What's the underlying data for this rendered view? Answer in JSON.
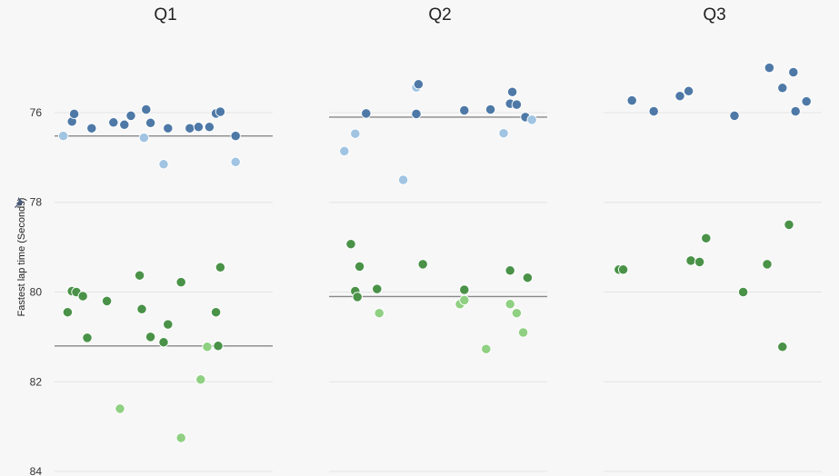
{
  "chart_data": {
    "type": "scatter",
    "ylabel": "Fastest lap time (Seconds)",
    "ylim": [
      74.3,
      84.1
    ],
    "y_ticks": [
      76,
      78,
      80,
      82,
      84
    ],
    "y_reversed": true,
    "grid": true,
    "pin_icon": "pin-icon",
    "colors": {
      "blue_dark": "#4e79a7",
      "blue_light": "#a0c4e2",
      "green_dark": "#4a9248",
      "green_light": "#8fd082",
      "ref_line": "#888888",
      "grid": "#e4e4e4"
    },
    "panels": [
      {
        "title": "Q1",
        "ref_lines": [
          76.52,
          81.2
        ],
        "points": [
          {
            "jitter": 0.04,
            "y": 76.52,
            "color": "blue_light"
          },
          {
            "jitter": 0.08,
            "y": 76.2,
            "color": "blue_dark"
          },
          {
            "jitter": 0.09,
            "y": 76.03,
            "color": "blue_dark"
          },
          {
            "jitter": 0.17,
            "y": 76.35,
            "color": "blue_dark"
          },
          {
            "jitter": 0.27,
            "y": 76.22,
            "color": "blue_dark"
          },
          {
            "jitter": 0.32,
            "y": 76.27,
            "color": "blue_dark"
          },
          {
            "jitter": 0.35,
            "y": 76.07,
            "color": "blue_dark"
          },
          {
            "jitter": 0.41,
            "y": 76.56,
            "color": "blue_light"
          },
          {
            "jitter": 0.42,
            "y": 75.93,
            "color": "blue_dark"
          },
          {
            "jitter": 0.44,
            "y": 76.23,
            "color": "blue_dark"
          },
          {
            "jitter": 0.5,
            "y": 77.15,
            "color": "blue_light"
          },
          {
            "jitter": 0.52,
            "y": 76.35,
            "color": "blue_dark"
          },
          {
            "jitter": 0.62,
            "y": 76.35,
            "color": "blue_dark"
          },
          {
            "jitter": 0.66,
            "y": 76.32,
            "color": "blue_dark"
          },
          {
            "jitter": 0.71,
            "y": 76.32,
            "color": "blue_dark"
          },
          {
            "jitter": 0.74,
            "y": 76.02,
            "color": "blue_dark"
          },
          {
            "jitter": 0.76,
            "y": 75.98,
            "color": "blue_dark"
          },
          {
            "jitter": 0.83,
            "y": 76.52,
            "color": "blue_dark"
          },
          {
            "jitter": 0.83,
            "y": 77.1,
            "color": "blue_light"
          },
          {
            "jitter": 0.06,
            "y": 80.45,
            "color": "green_dark"
          },
          {
            "jitter": 0.08,
            "y": 79.98,
            "color": "green_dark"
          },
          {
            "jitter": 0.1,
            "y": 80.0,
            "color": "green_dark"
          },
          {
            "jitter": 0.13,
            "y": 80.09,
            "color": "green_dark"
          },
          {
            "jitter": 0.15,
            "y": 81.02,
            "color": "green_dark"
          },
          {
            "jitter": 0.24,
            "y": 80.2,
            "color": "green_dark"
          },
          {
            "jitter": 0.3,
            "y": 82.6,
            "color": "green_light"
          },
          {
            "jitter": 0.39,
            "y": 79.63,
            "color": "green_dark"
          },
          {
            "jitter": 0.4,
            "y": 80.38,
            "color": "green_dark"
          },
          {
            "jitter": 0.44,
            "y": 81.0,
            "color": "green_dark"
          },
          {
            "jitter": 0.5,
            "y": 81.12,
            "color": "green_dark"
          },
          {
            "jitter": 0.52,
            "y": 80.72,
            "color": "green_dark"
          },
          {
            "jitter": 0.58,
            "y": 83.25,
            "color": "green_light"
          },
          {
            "jitter": 0.58,
            "y": 79.78,
            "color": "green_dark"
          },
          {
            "jitter": 0.67,
            "y": 81.95,
            "color": "green_light"
          },
          {
            "jitter": 0.7,
            "y": 81.22,
            "color": "green_light"
          },
          {
            "jitter": 0.74,
            "y": 80.45,
            "color": "green_dark"
          },
          {
            "jitter": 0.75,
            "y": 81.2,
            "color": "green_dark"
          },
          {
            "jitter": 0.76,
            "y": 79.45,
            "color": "green_dark"
          }
        ]
      },
      {
        "title": "Q2",
        "ref_lines": [
          76.1,
          80.1
        ],
        "points": [
          {
            "jitter": 0.07,
            "y": 76.86,
            "color": "blue_light"
          },
          {
            "jitter": 0.12,
            "y": 76.47,
            "color": "blue_light"
          },
          {
            "jitter": 0.17,
            "y": 76.02,
            "color": "blue_dark"
          },
          {
            "jitter": 0.34,
            "y": 77.5,
            "color": "blue_light"
          },
          {
            "jitter": 0.4,
            "y": 75.44,
            "color": "blue_light"
          },
          {
            "jitter": 0.41,
            "y": 75.37,
            "color": "blue_dark"
          },
          {
            "jitter": 0.4,
            "y": 76.03,
            "color": "blue_dark"
          },
          {
            "jitter": 0.62,
            "y": 75.95,
            "color": "blue_dark"
          },
          {
            "jitter": 0.74,
            "y": 75.93,
            "color": "blue_dark"
          },
          {
            "jitter": 0.8,
            "y": 76.46,
            "color": "blue_light"
          },
          {
            "jitter": 0.83,
            "y": 75.8,
            "color": "blue_dark"
          },
          {
            "jitter": 0.84,
            "y": 75.54,
            "color": "blue_dark"
          },
          {
            "jitter": 0.86,
            "y": 75.82,
            "color": "blue_dark"
          },
          {
            "jitter": 0.9,
            "y": 76.1,
            "color": "blue_dark"
          },
          {
            "jitter": 0.93,
            "y": 76.16,
            "color": "blue_light"
          },
          {
            "jitter": 0.1,
            "y": 78.93,
            "color": "green_dark"
          },
          {
            "jitter": 0.12,
            "y": 79.98,
            "color": "green_dark"
          },
          {
            "jitter": 0.13,
            "y": 80.11,
            "color": "green_dark"
          },
          {
            "jitter": 0.14,
            "y": 79.43,
            "color": "green_dark"
          },
          {
            "jitter": 0.22,
            "y": 79.93,
            "color": "green_dark"
          },
          {
            "jitter": 0.23,
            "y": 80.47,
            "color": "green_light"
          },
          {
            "jitter": 0.43,
            "y": 79.38,
            "color": "green_dark"
          },
          {
            "jitter": 0.6,
            "y": 80.27,
            "color": "green_light"
          },
          {
            "jitter": 0.62,
            "y": 80.18,
            "color": "green_light"
          },
          {
            "jitter": 0.62,
            "y": 79.95,
            "color": "green_dark"
          },
          {
            "jitter": 0.72,
            "y": 81.27,
            "color": "green_light"
          },
          {
            "jitter": 0.83,
            "y": 79.52,
            "color": "green_dark"
          },
          {
            "jitter": 0.83,
            "y": 80.27,
            "color": "green_light"
          },
          {
            "jitter": 0.86,
            "y": 80.47,
            "color": "green_light"
          },
          {
            "jitter": 0.89,
            "y": 80.9,
            "color": "green_light"
          },
          {
            "jitter": 0.91,
            "y": 79.68,
            "color": "green_dark"
          }
        ]
      },
      {
        "title": "Q3",
        "ref_lines": [],
        "points": [
          {
            "jitter": 0.13,
            "y": 75.73,
            "color": "blue_dark"
          },
          {
            "jitter": 0.23,
            "y": 75.97,
            "color": "blue_dark"
          },
          {
            "jitter": 0.35,
            "y": 75.63,
            "color": "blue_dark"
          },
          {
            "jitter": 0.39,
            "y": 75.52,
            "color": "blue_dark"
          },
          {
            "jitter": 0.6,
            "y": 76.07,
            "color": "blue_dark"
          },
          {
            "jitter": 0.76,
            "y": 75.0,
            "color": "blue_dark"
          },
          {
            "jitter": 0.82,
            "y": 75.45,
            "color": "blue_dark"
          },
          {
            "jitter": 0.87,
            "y": 75.1,
            "color": "blue_dark"
          },
          {
            "jitter": 0.88,
            "y": 75.97,
            "color": "blue_dark"
          },
          {
            "jitter": 0.93,
            "y": 75.75,
            "color": "blue_dark"
          },
          {
            "jitter": 0.07,
            "y": 79.5,
            "color": "green_dark"
          },
          {
            "jitter": 0.09,
            "y": 79.5,
            "color": "green_dark"
          },
          {
            "jitter": 0.4,
            "y": 79.3,
            "color": "green_dark"
          },
          {
            "jitter": 0.44,
            "y": 79.33,
            "color": "green_dark"
          },
          {
            "jitter": 0.47,
            "y": 78.8,
            "color": "green_dark"
          },
          {
            "jitter": 0.64,
            "y": 80.0,
            "color": "green_dark"
          },
          {
            "jitter": 0.75,
            "y": 79.38,
            "color": "green_dark"
          },
          {
            "jitter": 0.82,
            "y": 81.22,
            "color": "green_dark"
          },
          {
            "jitter": 0.85,
            "y": 78.5,
            "color": "green_dark"
          }
        ]
      }
    ]
  }
}
